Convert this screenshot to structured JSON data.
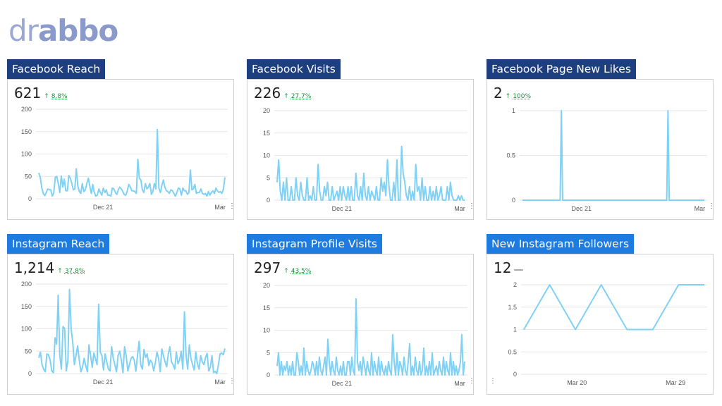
{
  "logo": {
    "thin": "dr",
    "bold": "abbo"
  },
  "colors": {
    "line": "#7fd1f5",
    "fb_title": "#1e3f7f",
    "ig_title": "#1e7be0",
    "delta_up": "#1e8e3e"
  },
  "menu_icon": "more-vert-icon",
  "panels": [
    {
      "title": "Facebook Reach",
      "kpi": "621",
      "delta_arrow": "↑",
      "delta": "8.8%"
    },
    {
      "title": "Facebook Visits",
      "kpi": "226",
      "delta_arrow": "↑",
      "delta": "27.7%"
    },
    {
      "title": "Facebook Page New Likes",
      "kpi": "2",
      "delta_arrow": "↑",
      "delta": "100%"
    },
    {
      "title": "Instagram Reach",
      "kpi": "1,214",
      "delta_arrow": "↑",
      "delta": "37.8%"
    },
    {
      "title": "Instagram Profile Visits",
      "kpi": "297",
      "delta_arrow": "↑",
      "delta": "43.5%"
    },
    {
      "title": "New Instagram Followers",
      "kpi": "12",
      "delta_dash": "—"
    }
  ],
  "chart_data": [
    {
      "type": "line",
      "title": "Facebook Reach",
      "ylim": [
        0,
        200
      ],
      "yticks": [
        "200",
        "150",
        "100",
        "50",
        "0"
      ],
      "xtick_labels": [
        "Dec 21",
        "Mar"
      ],
      "grid": true,
      "values": [
        58,
        48,
        24,
        12,
        7,
        14,
        22,
        20,
        20,
        6,
        14,
        48,
        50,
        34,
        14,
        51,
        26,
        44,
        18,
        18,
        52,
        46,
        34,
        20,
        22,
        67,
        28,
        16,
        12,
        34,
        16,
        20,
        34,
        46,
        28,
        12,
        32,
        14,
        6,
        8,
        22,
        14,
        8,
        24,
        14,
        20,
        8,
        8,
        6,
        24,
        22,
        14,
        10,
        20,
        26,
        22,
        16,
        9,
        8,
        18,
        32,
        26,
        18,
        18,
        16,
        12,
        88,
        46,
        42,
        20,
        14,
        34,
        22,
        26,
        34,
        10,
        16,
        34,
        22,
        155,
        24,
        14,
        30,
        42,
        26,
        18,
        16,
        12,
        20,
        18,
        12,
        6,
        14,
        24,
        22,
        8,
        24,
        18,
        18,
        10,
        14,
        64,
        20,
        22,
        32,
        12,
        14,
        14,
        22,
        12,
        10,
        12,
        6,
        16,
        8,
        14,
        18,
        12,
        24,
        18,
        14,
        16,
        12,
        22,
        48
      ]
    },
    {
      "type": "line",
      "title": "Facebook Visits",
      "ylim": [
        0,
        20
      ],
      "yticks": [
        "20",
        "15",
        "10",
        "5",
        "0"
      ],
      "xtick_labels": [
        "Dec 21",
        "Mar"
      ],
      "grid": true,
      "values": [
        4,
        9,
        2,
        0,
        4,
        0,
        5,
        0,
        0,
        3,
        0,
        0,
        5,
        1,
        0,
        4,
        1,
        0,
        0,
        5,
        0,
        1,
        0,
        3,
        0,
        0,
        8,
        2,
        0,
        0,
        3,
        1,
        4,
        0,
        0,
        3,
        0,
        1,
        2,
        0,
        3,
        0,
        3,
        1,
        0,
        3,
        0,
        3,
        0,
        0,
        6,
        1,
        0,
        3,
        0,
        6,
        1,
        0,
        3,
        0,
        2,
        1,
        0,
        3,
        0,
        0,
        5,
        2,
        4,
        1,
        9,
        3,
        0,
        0,
        4,
        0,
        9,
        0,
        0,
        12,
        6,
        4,
        1,
        0,
        3,
        0,
        2,
        0,
        8,
        2,
        3,
        0,
        5,
        0,
        3,
        0,
        0,
        3,
        0,
        2,
        0,
        3,
        0,
        1,
        3,
        0,
        0,
        0,
        3,
        0,
        4,
        1,
        0,
        0,
        0,
        1,
        0,
        1,
        0,
        0
      ]
    },
    {
      "type": "line",
      "title": "Facebook Page New Likes",
      "ylim": [
        0,
        1
      ],
      "yticks": [
        "1",
        "0.5",
        "0"
      ],
      "xtick_labels": [
        "Dec 21",
        "Mar"
      ],
      "grid": true,
      "values": [
        0,
        0,
        0,
        0,
        0,
        0,
        0,
        0,
        0,
        0,
        0,
        0,
        0,
        0,
        0,
        0,
        0,
        0,
        0,
        0,
        0,
        0,
        0,
        0,
        0,
        0,
        0,
        0,
        0,
        0,
        0,
        1,
        0,
        0,
        0,
        0,
        0,
        0,
        0,
        0,
        0,
        0,
        0,
        0,
        0,
        0,
        0,
        0,
        0,
        0,
        0,
        0,
        0,
        0,
        0,
        0,
        0,
        0,
        0,
        0,
        0,
        0,
        0,
        0,
        0,
        0,
        0,
        0,
        0,
        0,
        0,
        0,
        0,
        0,
        0,
        0,
        0,
        0,
        0,
        0,
        0,
        0,
        0,
        0,
        0,
        0,
        0,
        0,
        0,
        0,
        0,
        0,
        0,
        0,
        0,
        0,
        0,
        0,
        0,
        0,
        0,
        0,
        0,
        0,
        0,
        0,
        0,
        0,
        0,
        0,
        0,
        0,
        0,
        0,
        0,
        0,
        1,
        0,
        0,
        0,
        0,
        0,
        0,
        0,
        0,
        0,
        0,
        0,
        0,
        0,
        0,
        0,
        0,
        0,
        0,
        0,
        0,
        0,
        0,
        0,
        0,
        0,
        0,
        0,
        0,
        0
      ]
    },
    {
      "type": "line",
      "title": "Instagram Reach",
      "ylim": [
        0,
        200
      ],
      "yticks": [
        "200",
        "150",
        "100",
        "50",
        "0"
      ],
      "xtick_labels": [
        "Dec 21",
        "Mar"
      ],
      "grid": true,
      "values": [
        35,
        48,
        20,
        10,
        4,
        44,
        42,
        30,
        6,
        2,
        80,
        66,
        175,
        40,
        10,
        105,
        100,
        6,
        28,
        188,
        100,
        70,
        20,
        40,
        62,
        30,
        4,
        14,
        34,
        18,
        4,
        64,
        40,
        14,
        46,
        34,
        20,
        155,
        48,
        40,
        8,
        44,
        26,
        10,
        6,
        60,
        34,
        20,
        4,
        40,
        50,
        30,
        2,
        60,
        40,
        6,
        20,
        34,
        38,
        30,
        5,
        40,
        72,
        20,
        10,
        54,
        36,
        44,
        18,
        30,
        24,
        6,
        24,
        48,
        34,
        4,
        55,
        40,
        26,
        15,
        44,
        60,
        26,
        20,
        10,
        48,
        22,
        30,
        50,
        10,
        138,
        40,
        10,
        64,
        34,
        20,
        8,
        48,
        22,
        10,
        40,
        26,
        20,
        36,
        45,
        6,
        14,
        40,
        2,
        5,
        0,
        20,
        44,
        46,
        42,
        56
      ]
    },
    {
      "type": "line",
      "title": "Instagram Profile Visits",
      "ylim": [
        0,
        20
      ],
      "yticks": [
        "20",
        "15",
        "10",
        "5",
        "0"
      ],
      "xtick_labels": [
        "Dec 21",
        "Mar"
      ],
      "grid": true,
      "values": [
        2,
        5,
        0,
        3,
        0,
        2,
        1,
        3,
        0,
        2,
        0,
        3,
        0,
        0,
        5,
        3,
        0,
        2,
        0,
        6,
        0,
        3,
        1,
        0,
        1,
        3,
        2,
        0,
        3,
        0,
        4,
        1,
        0,
        2,
        4,
        0,
        8,
        3,
        0,
        3,
        1,
        0,
        4,
        1,
        0,
        2,
        0,
        3,
        0,
        0,
        3,
        3,
        0,
        4,
        1,
        0,
        17,
        3,
        1,
        3,
        0,
        4,
        2,
        0,
        3,
        1,
        0,
        5,
        0,
        3,
        1,
        0,
        4,
        0,
        3,
        1,
        0,
        2,
        0,
        3,
        1,
        0,
        9,
        3,
        0,
        5,
        0,
        3,
        2,
        0,
        4,
        1,
        0,
        3,
        7,
        0,
        2,
        0,
        4,
        1,
        0,
        3,
        0,
        1,
        6,
        0,
        2,
        0,
        3,
        0,
        5,
        0,
        1,
        2,
        0,
        3,
        1,
        0,
        4,
        0,
        3,
        1,
        0,
        5,
        0,
        3,
        0,
        2,
        0,
        1,
        3,
        9,
        0,
        3
      ]
    },
    {
      "type": "line",
      "title": "New Instagram Followers",
      "ylim": [
        0,
        2
      ],
      "yticks": [
        "2",
        "1.5",
        "1",
        "0.5",
        "0"
      ],
      "xtick_labels": [
        "Mar 20",
        "Mar 29"
      ],
      "grid": true,
      "values": [
        1,
        2,
        1,
        2,
        1,
        1,
        2,
        2
      ]
    }
  ]
}
